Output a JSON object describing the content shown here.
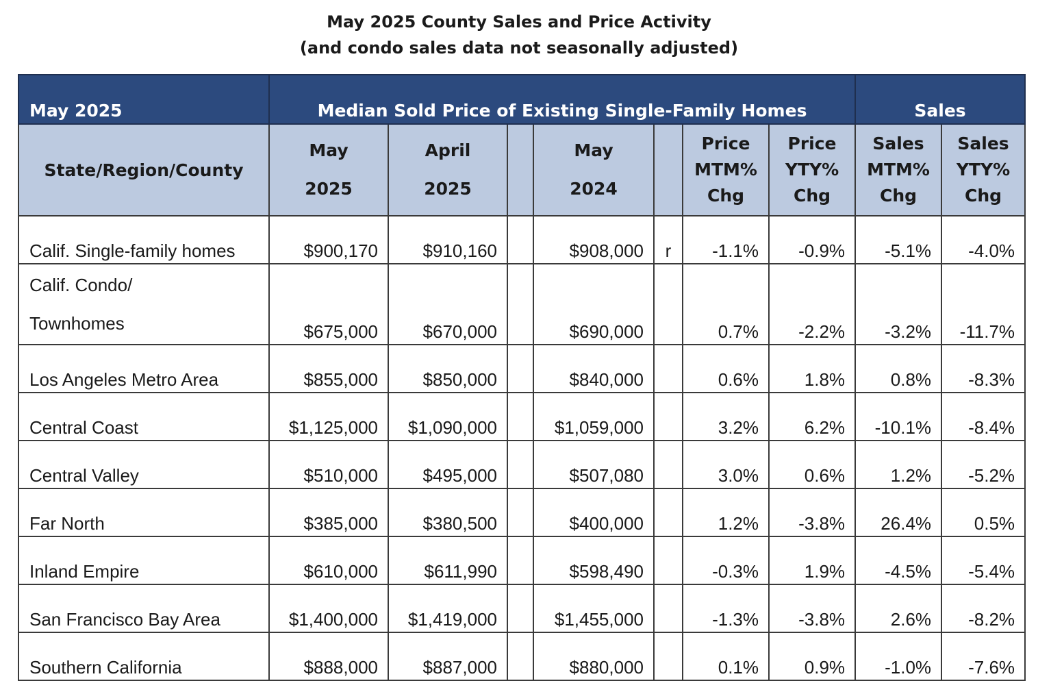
{
  "title_line1": "May 2025 County Sales and Price Activity",
  "title_line2": "(and condo sales data not seasonally adjusted)",
  "header": {
    "period": "May 2025",
    "median_group": "Median Sold Price of Existing Single-Family Homes",
    "sales_group": "Sales",
    "col_region": "State/Region/County",
    "col_may2025_a": "May",
    "col_may2025_b": "2025",
    "col_apr2025_a": "April",
    "col_apr2025_b": "2025",
    "col_may2024_a": "May",
    "col_may2024_b": "2024",
    "col_pmtm_a": "Price",
    "col_pmtm_b": "MTM%",
    "col_pmtm_c": "Chg",
    "col_pyty_a": "Price",
    "col_pyty_b": "YTY%",
    "col_pyty_c": "Chg",
    "col_smtm_a": "Sales",
    "col_smtm_b": "MTM%",
    "col_smtm_c": "Chg",
    "col_syty_a": "Sales",
    "col_syty_b": "YTY%",
    "col_syty_c": "Chg"
  },
  "rows": [
    {
      "name": "Calif. Single-family homes",
      "may2025": "$900,170",
      "apr2025": "$910,160",
      "may2024": "$908,000",
      "flag": "r",
      "price_mtm": "-1.1%",
      "price_yty": "-0.9%",
      "sales_mtm": "-5.1%",
      "sales_yty": "-4.0%"
    },
    {
      "name": "Calif. Condo/",
      "name2": "Townhomes",
      "may2025": "$675,000",
      "apr2025": "$670,000",
      "may2024": "$690,000",
      "flag": "",
      "price_mtm": "0.7%",
      "price_yty": "-2.2%",
      "sales_mtm": "-3.2%",
      "sales_yty": "-11.7%"
    },
    {
      "name": "Los Angeles Metro Area",
      "may2025": "$855,000",
      "apr2025": "$850,000",
      "may2024": "$840,000",
      "flag": "",
      "price_mtm": "0.6%",
      "price_yty": "1.8%",
      "sales_mtm": "0.8%",
      "sales_yty": "-8.3%"
    },
    {
      "name": "Central Coast",
      "may2025": "$1,125,000",
      "apr2025": "$1,090,000",
      "may2024": "$1,059,000",
      "flag": "",
      "price_mtm": "3.2%",
      "price_yty": "6.2%",
      "sales_mtm": "-10.1%",
      "sales_yty": "-8.4%"
    },
    {
      "name": "Central Valley",
      "may2025": "$510,000",
      "apr2025": "$495,000",
      "may2024": "$507,080",
      "flag": "",
      "price_mtm": "3.0%",
      "price_yty": "0.6%",
      "sales_mtm": "1.2%",
      "sales_yty": "-5.2%"
    },
    {
      "name": "Far North",
      "may2025": "$385,000",
      "apr2025": "$380,500",
      "may2024": "$400,000",
      "flag": "",
      "price_mtm": "1.2%",
      "price_yty": "-3.8%",
      "sales_mtm": "26.4%",
      "sales_yty": "0.5%"
    },
    {
      "name": "Inland Empire",
      "may2025": "$610,000",
      "apr2025": "$611,990",
      "may2024": "$598,490",
      "flag": "",
      "price_mtm": "-0.3%",
      "price_yty": "1.9%",
      "sales_mtm": "-4.5%",
      "sales_yty": "-5.4%"
    },
    {
      "name": "San Francisco Bay Area",
      "may2025": "$1,400,000",
      "apr2025": "$1,419,000",
      "may2024": "$1,455,000",
      "flag": "",
      "price_mtm": "-1.3%",
      "price_yty": "-3.8%",
      "sales_mtm": "2.6%",
      "sales_yty": "-8.2%"
    },
    {
      "name": "Southern California",
      "may2025": "$888,000",
      "apr2025": "$887,000",
      "may2024": "$880,000",
      "flag": "",
      "price_mtm": "0.1%",
      "price_yty": "0.9%",
      "sales_mtm": "-1.0%",
      "sales_yty": "-7.6%"
    }
  ]
}
